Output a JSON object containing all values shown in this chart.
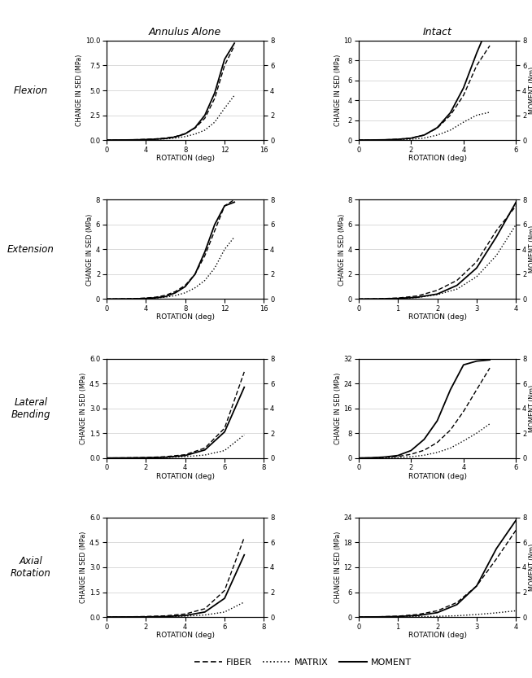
{
  "col_titles": [
    "Annulus Alone",
    "Intact"
  ],
  "row_labels": [
    "Flexion",
    "Extension",
    "Lateral\nBending",
    "Axial\nRotation"
  ],
  "legend_labels": [
    "FIBER",
    "MATRIX",
    "MOMENT"
  ],
  "plots": [
    {
      "row": 0,
      "col": 0,
      "xlim": [
        0,
        16
      ],
      "xticks": [
        0,
        4,
        8,
        12,
        16
      ],
      "ylim_left": [
        0,
        10
      ],
      "yticks_left": [
        0,
        2.5,
        5,
        7.5,
        10
      ],
      "ylim_right": [
        0,
        8
      ],
      "yticks_right": [
        0,
        2,
        4,
        6,
        8
      ],
      "fiber_x": [
        0,
        1,
        2,
        3,
        4,
        5,
        6,
        7,
        8,
        9,
        10,
        11,
        12,
        13
      ],
      "fiber_y": [
        0,
        0.01,
        0.02,
        0.04,
        0.07,
        0.12,
        0.2,
        0.35,
        0.65,
        1.2,
        2.2,
        4.2,
        7.5,
        9.5
      ],
      "matrix_x": [
        0,
        1,
        2,
        3,
        4,
        5,
        6,
        7,
        8,
        9,
        10,
        11,
        12,
        13
      ],
      "matrix_y": [
        0,
        0.005,
        0.01,
        0.02,
        0.04,
        0.07,
        0.12,
        0.2,
        0.35,
        0.6,
        1.0,
        1.8,
        3.2,
        4.5
      ],
      "moment_x": [
        0,
        1,
        2,
        3,
        4,
        5,
        6,
        7,
        8,
        9,
        10,
        11,
        12,
        13
      ],
      "moment_y": [
        0,
        0.005,
        0.01,
        0.02,
        0.04,
        0.07,
        0.13,
        0.25,
        0.5,
        1.0,
        2.0,
        3.8,
        6.5,
        7.8
      ]
    },
    {
      "row": 0,
      "col": 1,
      "xlim": [
        0,
        6
      ],
      "xticks": [
        0,
        2,
        4,
        6
      ],
      "ylim_left": [
        0,
        10
      ],
      "yticks_left": [
        0,
        2,
        4,
        6,
        8,
        10
      ],
      "ylim_right": [
        0,
        8
      ],
      "yticks_right": [
        0,
        2,
        4,
        6,
        8
      ],
      "fiber_x": [
        0,
        0.5,
        1,
        1.5,
        2,
        2.5,
        3,
        3.5,
        4,
        4.5,
        5
      ],
      "fiber_y": [
        0,
        0.01,
        0.03,
        0.08,
        0.2,
        0.5,
        1.2,
        2.5,
        4.5,
        7.5,
        9.5
      ],
      "matrix_x": [
        0,
        0.5,
        1,
        1.5,
        2,
        2.5,
        3,
        3.5,
        4,
        4.5,
        5
      ],
      "matrix_y": [
        0,
        0.005,
        0.01,
        0.03,
        0.08,
        0.2,
        0.5,
        1.0,
        1.8,
        2.5,
        2.8
      ],
      "moment_x": [
        0,
        0.5,
        1,
        1.5,
        2,
        2.5,
        3,
        3.5,
        4,
        4.5,
        5
      ],
      "moment_y": [
        0,
        0.005,
        0.02,
        0.06,
        0.15,
        0.4,
        1.0,
        2.2,
        4.2,
        7.0,
        9.5
      ]
    },
    {
      "row": 1,
      "col": 0,
      "xlim": [
        0,
        16
      ],
      "xticks": [
        0,
        4,
        8,
        12,
        16
      ],
      "ylim_left": [
        0,
        8
      ],
      "yticks_left": [
        0,
        2,
        4,
        6,
        8
      ],
      "ylim_right": [
        0,
        8
      ],
      "yticks_right": [
        0,
        2,
        4,
        6,
        8
      ],
      "fiber_x": [
        0,
        1,
        2,
        3,
        4,
        5,
        6,
        7,
        8,
        9,
        10,
        11,
        12,
        13
      ],
      "fiber_y": [
        0,
        0.01,
        0.02,
        0.04,
        0.08,
        0.15,
        0.3,
        0.6,
        1.1,
        2.0,
        3.5,
        5.5,
        7.5,
        8.0
      ],
      "matrix_x": [
        0,
        1,
        2,
        3,
        4,
        5,
        6,
        7,
        8,
        9,
        10,
        11,
        12,
        13
      ],
      "matrix_y": [
        0,
        0.005,
        0.01,
        0.02,
        0.04,
        0.08,
        0.15,
        0.28,
        0.5,
        0.9,
        1.5,
        2.5,
        4.0,
        5.0
      ],
      "moment_x": [
        0,
        1,
        2,
        3,
        4,
        5,
        6,
        7,
        8,
        9,
        10,
        11,
        12,
        13
      ],
      "moment_y": [
        0,
        0.005,
        0.01,
        0.02,
        0.05,
        0.1,
        0.2,
        0.5,
        1.0,
        2.0,
        3.8,
        6.0,
        7.5,
        7.8
      ]
    },
    {
      "row": 1,
      "col": 1,
      "xlim": [
        0,
        4
      ],
      "xticks": [
        0,
        1,
        2,
        3,
        4
      ],
      "ylim_left": [
        0,
        8
      ],
      "yticks_left": [
        0,
        2,
        4,
        6,
        8
      ],
      "ylim_right": [
        0,
        8
      ],
      "yticks_right": [
        0,
        2,
        4,
        6,
        8
      ],
      "fiber_x": [
        0,
        0.5,
        1,
        1.5,
        2,
        2.5,
        3,
        3.5,
        4
      ],
      "fiber_y": [
        0,
        0.02,
        0.08,
        0.25,
        0.7,
        1.5,
        3.0,
        5.5,
        7.5
      ],
      "matrix_x": [
        0,
        0.5,
        1,
        1.5,
        2,
        2.5,
        3,
        3.5,
        4
      ],
      "matrix_y": [
        0,
        0.01,
        0.04,
        0.12,
        0.35,
        0.8,
        1.8,
        3.5,
        6.0
      ],
      "moment_x": [
        0,
        0.5,
        1,
        1.5,
        2,
        2.5,
        3,
        3.5,
        4
      ],
      "moment_y": [
        0,
        0.01,
        0.05,
        0.15,
        0.4,
        1.1,
        2.5,
        5.0,
        7.8
      ]
    },
    {
      "row": 2,
      "col": 0,
      "xlim": [
        0,
        8
      ],
      "xticks": [
        0,
        2,
        4,
        6,
        8
      ],
      "ylim_left": [
        0,
        6
      ],
      "yticks_left": [
        0,
        1.5,
        3,
        4.5,
        6
      ],
      "ylim_right": [
        0,
        8
      ],
      "yticks_right": [
        0,
        2,
        4,
        6,
        8
      ],
      "fiber_x": [
        0,
        1,
        2,
        3,
        4,
        5,
        6,
        7
      ],
      "fiber_y": [
        0,
        0.01,
        0.03,
        0.08,
        0.2,
        0.6,
        1.8,
        5.2
      ],
      "matrix_x": [
        0,
        1,
        2,
        3,
        4,
        5,
        6,
        7
      ],
      "matrix_y": [
        0,
        0.005,
        0.01,
        0.03,
        0.08,
        0.18,
        0.45,
        1.4
      ],
      "moment_x": [
        0,
        1,
        2,
        3,
        4,
        5,
        6,
        7
      ],
      "moment_y": [
        0,
        0.005,
        0.02,
        0.06,
        0.2,
        0.65,
        2.1,
        5.7
      ]
    },
    {
      "row": 2,
      "col": 1,
      "xlim": [
        0,
        6
      ],
      "xticks": [
        0,
        2,
        4,
        6
      ],
      "ylim_left": [
        0,
        32
      ],
      "yticks_left": [
        0,
        8,
        16,
        24,
        32
      ],
      "ylim_right": [
        0,
        8
      ],
      "yticks_right": [
        0,
        2,
        4,
        6,
        8
      ],
      "fiber_x": [
        0,
        0.5,
        1,
        1.5,
        2,
        2.5,
        3,
        3.5,
        4,
        4.5,
        5
      ],
      "fiber_y": [
        0,
        0.05,
        0.2,
        0.5,
        1.2,
        2.5,
        5.0,
        9.0,
        15.0,
        22.0,
        29.0
      ],
      "matrix_x": [
        0,
        0.5,
        1,
        1.5,
        2,
        2.5,
        3,
        3.5,
        4,
        4.5,
        5
      ],
      "matrix_y": [
        0,
        0.02,
        0.06,
        0.15,
        0.4,
        0.9,
        1.8,
        3.2,
        5.5,
        8.0,
        11.0
      ],
      "moment_x": [
        0,
        0.5,
        1,
        1.5,
        2,
        2.5,
        3,
        3.5,
        4,
        4.5,
        5
      ],
      "moment_y": [
        0,
        0.02,
        0.08,
        0.2,
        0.6,
        1.5,
        3.0,
        5.5,
        7.5,
        7.8,
        7.9
      ]
    },
    {
      "row": 3,
      "col": 0,
      "xlim": [
        0,
        8
      ],
      "xticks": [
        0,
        2,
        4,
        6,
        8
      ],
      "ylim_left": [
        0,
        6
      ],
      "yticks_left": [
        0,
        1.5,
        3,
        4.5,
        6
      ],
      "ylim_right": [
        0,
        8
      ],
      "yticks_right": [
        0,
        2,
        4,
        6,
        8
      ],
      "fiber_x": [
        0,
        1,
        2,
        3,
        4,
        5,
        6,
        7
      ],
      "fiber_y": [
        0,
        0.01,
        0.03,
        0.07,
        0.18,
        0.5,
        1.6,
        4.8
      ],
      "matrix_x": [
        0,
        1,
        2,
        3,
        4,
        5,
        6,
        7
      ],
      "matrix_y": [
        0,
        0.005,
        0.01,
        0.02,
        0.05,
        0.12,
        0.3,
        0.9
      ],
      "moment_x": [
        0,
        1,
        2,
        3,
        4,
        5,
        6,
        7
      ],
      "moment_y": [
        0,
        0.005,
        0.01,
        0.04,
        0.12,
        0.4,
        1.5,
        5.0
      ]
    },
    {
      "row": 3,
      "col": 1,
      "xlim": [
        0,
        4
      ],
      "xticks": [
        0,
        1,
        2,
        3,
        4
      ],
      "ylim_left": [
        0,
        24
      ],
      "yticks_left": [
        0,
        6,
        12,
        18,
        24
      ],
      "ylim_right": [
        0,
        8
      ],
      "yticks_right": [
        0,
        2,
        4,
        6,
        8
      ],
      "fiber_x": [
        0,
        0.5,
        1,
        1.5,
        2,
        2.5,
        3,
        3.5,
        4
      ],
      "fiber_y": [
        0,
        0.05,
        0.2,
        0.6,
        1.5,
        3.5,
        7.5,
        14.0,
        21.0
      ],
      "matrix_x": [
        0,
        0.5,
        1,
        1.5,
        2,
        2.5,
        3,
        3.5,
        4
      ],
      "matrix_y": [
        0,
        0.01,
        0.03,
        0.07,
        0.15,
        0.3,
        0.6,
        1.0,
        1.5
      ],
      "moment_x": [
        0,
        0.5,
        1,
        1.5,
        2,
        2.5,
        3,
        3.5,
        4
      ],
      "moment_y": [
        0,
        0.01,
        0.04,
        0.12,
        0.35,
        1.0,
        2.5,
        5.5,
        7.8
      ]
    }
  ],
  "fiber_style": {
    "color": "black",
    "linestyle": "--",
    "linewidth": 1.0,
    "dashes": [
      4,
      2
    ]
  },
  "matrix_style": {
    "color": "black",
    "linestyle": ":",
    "linewidth": 1.0
  },
  "moment_style": {
    "color": "black",
    "linestyle": "-",
    "linewidth": 1.3
  },
  "left_ylabel": "CHANGE IN SED (MPa)",
  "right_ylabel": "MOMENT (Nm)",
  "xlabel": "ROTATION (deg)",
  "figsize": [
    6.54,
    8.33
  ],
  "dpi": 100
}
